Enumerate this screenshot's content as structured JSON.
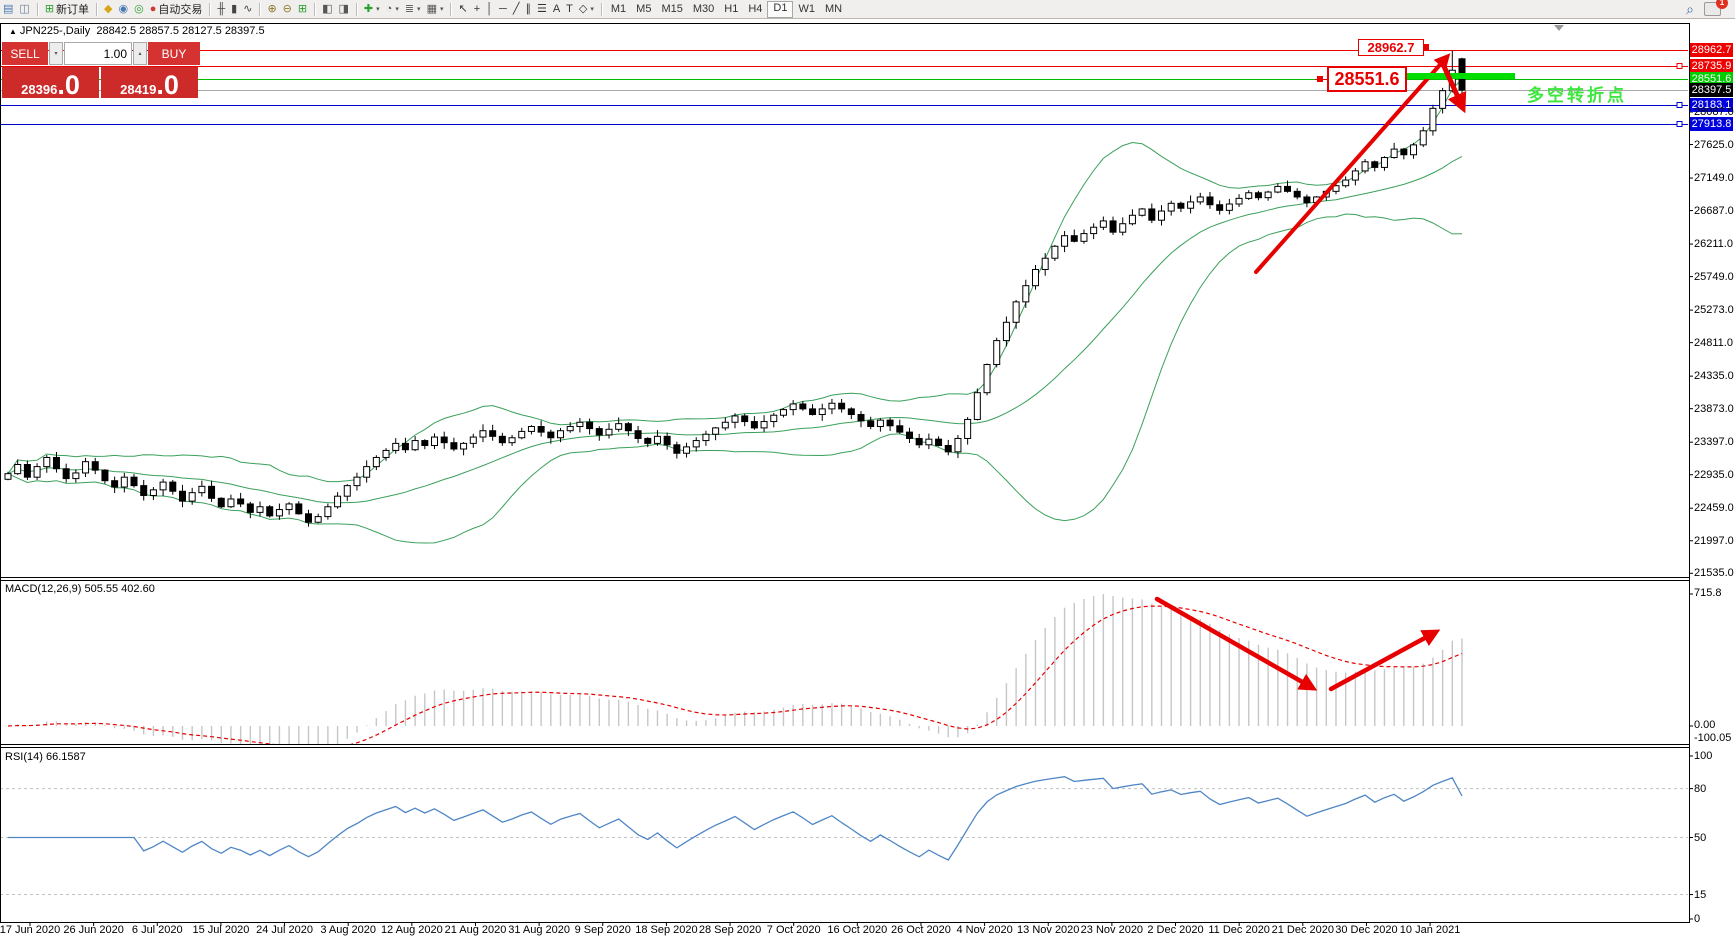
{
  "toolbar": {
    "groups": [
      {
        "items": [
          {
            "name": "charts-list-icon",
            "glyph": "▤",
            "color": "#4a78b0"
          },
          {
            "name": "data-window-icon",
            "glyph": "◫",
            "color": "#6b7f99"
          }
        ]
      },
      {
        "items": [
          {
            "name": "new-order-icon",
            "glyph": "⊞",
            "color": "#2e9e2e",
            "label": "新订单"
          }
        ]
      },
      {
        "items": [
          {
            "name": "styler-icon",
            "glyph": "◆",
            "color": "#d9a414"
          },
          {
            "name": "request-icon",
            "glyph": "◉",
            "color": "#4a78b0"
          },
          {
            "name": "signals-icon",
            "glyph": "◎",
            "color": "#2e9e2e"
          },
          {
            "name": "autotrading-icon",
            "glyph": "●",
            "color": "#cc3a2e",
            "label": "自动交易"
          }
        ]
      },
      {
        "items": [
          {
            "name": "bar-chart-icon",
            "glyph": "╫",
            "color": "#444"
          },
          {
            "name": "candlestick-chart-icon",
            "glyph": "▮",
            "color": "#444"
          },
          {
            "name": "line-chart-icon",
            "glyph": "∿",
            "color": "#444"
          }
        ]
      },
      {
        "items": [
          {
            "name": "zoom-in-icon",
            "glyph": "⊕",
            "color": "#8a7a2a"
          },
          {
            "name": "zoom-out-icon",
            "glyph": "⊖",
            "color": "#8a7a2a"
          },
          {
            "name": "tile-windows-icon",
            "glyph": "⊞",
            "color": "#2e9e2e"
          }
        ]
      },
      {
        "items": [
          {
            "name": "auto-arrange-icon",
            "glyph": "◧",
            "color": "#555"
          },
          {
            "name": "chart-shift-icon",
            "glyph": "◨",
            "color": "#555"
          }
        ]
      },
      {
        "items": [
          {
            "name": "add-indicator-icon",
            "glyph": "✚",
            "color": "#2e9e2e",
            "caret": true
          },
          {
            "name": "periods-icon",
            "glyph": "◔",
            "color": "#555",
            "caret": true
          },
          {
            "name": "templates-icon",
            "glyph": "≣",
            "color": "#555",
            "caret": true
          },
          {
            "name": "profiles-icon",
            "glyph": "▦",
            "color": "#555",
            "caret": true
          }
        ]
      },
      {
        "items": [
          {
            "name": "cursor-icon",
            "glyph": "↖",
            "color": "#333"
          },
          {
            "name": "crosshair-icon",
            "glyph": "+",
            "color": "#333"
          },
          {
            "name": "vertical-line-icon",
            "glyph": "│",
            "color": "#333"
          },
          {
            "name": "horizontal-line-icon",
            "glyph": "─",
            "color": "#333"
          },
          {
            "name": "trendline-icon",
            "glyph": "╱",
            "color": "#333"
          },
          {
            "name": "equidistant-channel-icon",
            "glyph": "∥",
            "color": "#333"
          },
          {
            "name": "fibonacci-icon",
            "glyph": "☰",
            "color": "#333"
          },
          {
            "name": "text-icon",
            "glyph": "A",
            "color": "#333"
          },
          {
            "name": "text-label-icon",
            "glyph": "T",
            "color": "#333"
          },
          {
            "name": "shapes-icon",
            "glyph": "◇",
            "color": "#333",
            "caret": true
          }
        ]
      }
    ],
    "timeframes": [
      "M1",
      "M5",
      "M15",
      "M30",
      "H1",
      "H4",
      "D1",
      "W1",
      "MN"
    ],
    "active_timeframe": "D1",
    "notification_count": "1"
  },
  "icons": {
    "caret_down": "▾",
    "caret_up": "▴",
    "collapse_arrow": "▲",
    "search_glyph": "⌕"
  },
  "title": {
    "symbol": "JPN225-,Daily",
    "ohlc": "28842.5 28857.5 28127.5 28397.5"
  },
  "trade_panel": {
    "sell_label": "SELL",
    "buy_label": "BUY",
    "volume": "1.00",
    "sell_price_small": "28396",
    "sell_price_big": ".0",
    "buy_price_small": "28419",
    "buy_price_big": ".0"
  },
  "annotations": {
    "resistance_label": "28962.7",
    "support_label": "28551.6",
    "note_text": "多空转折点",
    "note_color": "#3ce63c"
  },
  "price_axis": {
    "ticks": [
      "28087.0",
      "27625.0",
      "27149.0",
      "26687.0",
      "26211.0",
      "25749.0",
      "25273.0",
      "24811.0",
      "24335.0",
      "23873.0",
      "23397.0",
      "22935.0",
      "22459.0",
      "21997.0",
      "21535.0"
    ]
  },
  "macd": {
    "label": "MACD(12,26,9) 505.55 402.60",
    "axis_max": "715.8",
    "axis_zero": "0.00",
    "axis_min": "-100.05"
  },
  "rsi": {
    "label": "RSI(14) 66.1587",
    "axis_levels": [
      "100",
      "80",
      "50",
      "15",
      "0"
    ],
    "dashed_levels": [
      80,
      50,
      15
    ]
  },
  "x_axis": {
    "dates": [
      "17 Jun 2020",
      "26 Jun 2020",
      "6 Jul 2020",
      "15 Jul 2020",
      "24 Jul 2020",
      "3 Aug 2020",
      "12 Aug 2020",
      "21 Aug 2020",
      "31 Aug 2020",
      "9 Sep 2020",
      "18 Sep 2020",
      "28 Sep 2020",
      "7 Oct 2020",
      "16 Oct 2020",
      "26 Oct 2020",
      "4 Nov 2020",
      "13 Nov 2020",
      "23 Nov 2020",
      "2 Dec 2020",
      "11 Dec 2020",
      "21 Dec 2020",
      "30 Dec 2020",
      "10 Jan 2021"
    ]
  },
  "chart_data": {
    "type": "candlestick",
    "symbol": "JPN225-",
    "timeframe": "Daily",
    "last_ohlc": {
      "open": 28842.5,
      "high": 28857.5,
      "low": 28127.5,
      "close": 28397.5
    },
    "peak_high": 28957,
    "indicators": [
      "Bollinger Bands(20,2)",
      "MACD(12,26,9)",
      "RSI(14)"
    ],
    "macd_current": 505.55,
    "macd_signal_current": 402.6,
    "rsi_current": 66.1587,
    "levels": [
      {
        "label": "28962.7",
        "value": 28962.7,
        "line": "#ee0000",
        "badge": "#ee0000",
        "handle": false
      },
      {
        "label": "28735.9",
        "value": 28735.9,
        "line": "#ee0000",
        "badge": "#ee0000",
        "handle": true
      },
      {
        "label": "28551.6",
        "value": 28551.6,
        "line": "#00bb00",
        "badge": "#00cc00",
        "handle": false
      },
      {
        "label": "28397.5",
        "value": 28397.5,
        "line": "#a8a8a8",
        "badge": "#000000",
        "handle": false
      },
      {
        "label": "28183.1",
        "value": 28183.1,
        "line": "#0000cc",
        "badge": "#0000dd",
        "handle": true
      },
      {
        "label": "27913.8",
        "value": 27913.8,
        "line": "#0000cc",
        "badge": "#0000dd",
        "handle": true
      }
    ],
    "closes": [
      22950,
      23080,
      22900,
      23050,
      23180,
      23020,
      22880,
      22960,
      23120,
      23000,
      22850,
      22760,
      22900,
      22780,
      22640,
      22720,
      22830,
      22700,
      22560,
      22680,
      22770,
      22600,
      22480,
      22590,
      22520,
      22400,
      22480,
      22350,
      22440,
      22520,
      22380,
      22260,
      22340,
      22480,
      22630,
      22780,
      22900,
      23050,
      23180,
      23280,
      23380,
      23290,
      23420,
      23350,
      23470,
      23390,
      23300,
      23380,
      23470,
      23560,
      23480,
      23390,
      23460,
      23550,
      23620,
      23540,
      23460,
      23560,
      23620,
      23680,
      23590,
      23500,
      23580,
      23660,
      23560,
      23450,
      23380,
      23480,
      23360,
      23240,
      23330,
      23420,
      23510,
      23600,
      23680,
      23770,
      23690,
      23600,
      23690,
      23780,
      23860,
      23940,
      23870,
      23790,
      23870,
      23950,
      23870,
      23790,
      23700,
      23620,
      23710,
      23630,
      23540,
      23450,
      23360,
      23440,
      23350,
      23260,
      23450,
      23720,
      24100,
      24500,
      24840,
      25100,
      25390,
      25620,
      25850,
      26010,
      26180,
      26330,
      26250,
      26360,
      26450,
      26540,
      26380,
      26500,
      26620,
      26710,
      26550,
      26680,
      26790,
      26720,
      26810,
      26880,
      26770,
      26690,
      26780,
      26860,
      26940,
      26870,
      26950,
      27030,
      26960,
      26880,
      26800,
      26880,
      26960,
      27040,
      27120,
      27250,
      27380,
      27300,
      27440,
      27560,
      27480,
      27620,
      27820,
      28139,
      28390,
      28680,
      28397.5
    ]
  }
}
